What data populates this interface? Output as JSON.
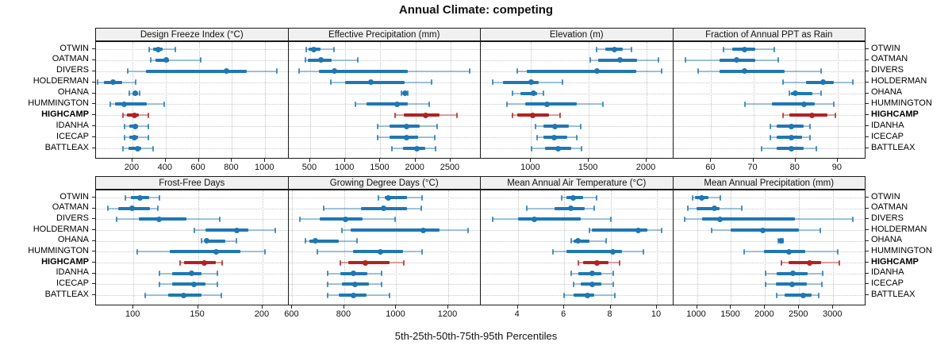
{
  "title": "Annual Climate: competing",
  "footer": "5th-25th-50th-75th-95th Percentiles",
  "colors": {
    "series": "#1f77b4",
    "series_light": "rgba(31,119,180,0.40)",
    "series_cap": "rgba(31,119,180,0.80)",
    "highlight": "#b22222",
    "highlight_light": "rgba(178,34,34,0.40)",
    "highlight_cap": "rgba(178,34,34,0.80)",
    "strip_bg": "#f0f0f0",
    "grid": "#c9c9c9",
    "border": "#1a1a1a"
  },
  "sites": [
    "OTWIN",
    "OATMAN",
    "DIVERS",
    "HOLDERMAN",
    "OHANA",
    "HUMMINGTON",
    "HIGHCAMP",
    "IDANHA",
    "ICECAP",
    "BATTLEAX"
  ],
  "highlight_site": "HIGHCAMP",
  "chart_data": {
    "type": "dotplot-percentiles",
    "percentiles": [
      "5th",
      "25th",
      "50th",
      "75th",
      "95th"
    ],
    "panels": [
      {
        "label": "Design Freeze Index (°C)",
        "xlim": [
          -20,
          1140
        ],
        "ticks": [
          200,
          400,
          600,
          800,
          1000
        ],
        "series": [
          [
            300,
            325,
            355,
            380,
            460
          ],
          [
            310,
            340,
            405,
            420,
            610
          ],
          [
            170,
            280,
            765,
            890,
            1070
          ],
          [
            -10,
            30,
            85,
            140,
            220
          ],
          [
            180,
            200,
            215,
            235,
            245
          ],
          [
            65,
            95,
            150,
            285,
            390
          ],
          [
            145,
            165,
            210,
            240,
            295
          ],
          [
            150,
            180,
            215,
            235,
            295
          ],
          [
            150,
            180,
            210,
            235,
            295
          ],
          [
            145,
            175,
            230,
            255,
            325
          ]
        ]
      },
      {
        "label": "Effective Precipitation (mm)",
        "xlim": [
          190,
          2930
        ],
        "ticks": [
          500,
          1000,
          1500,
          2000,
          2500
        ],
        "series": [
          [
            440,
            475,
            555,
            645,
            835
          ],
          [
            430,
            465,
            655,
            805,
            1180
          ],
          [
            340,
            630,
            845,
            1890,
            2770
          ],
          [
            800,
            1000,
            1360,
            1840,
            2230
          ],
          [
            1805,
            1825,
            1850,
            1870,
            1890
          ],
          [
            1145,
            1300,
            1735,
            1890,
            2190
          ],
          [
            1710,
            1830,
            2150,
            2345,
            2590
          ],
          [
            1460,
            1635,
            1875,
            2060,
            2310
          ],
          [
            1460,
            1625,
            1870,
            2040,
            2270
          ],
          [
            1660,
            1825,
            2025,
            2135,
            2285
          ]
        ]
      },
      {
        "label": "Elevation (m)",
        "xlim": [
          565,
          2230
        ],
        "ticks": [
          1000,
          1500,
          2000
        ],
        "series": [
          [
            1570,
            1645,
            1720,
            1795,
            1870
          ],
          [
            1515,
            1580,
            1770,
            1920,
            2100
          ],
          [
            880,
            965,
            1570,
            1910,
            2130
          ],
          [
            665,
            760,
            1000,
            1065,
            1270
          ],
          [
            840,
            905,
            1020,
            1055,
            1110
          ],
          [
            790,
            950,
            1135,
            1395,
            1620
          ],
          [
            840,
            880,
            1015,
            1155,
            1250
          ],
          [
            1040,
            1110,
            1205,
            1325,
            1430
          ],
          [
            1055,
            1110,
            1200,
            1315,
            1395
          ],
          [
            1005,
            1120,
            1235,
            1350,
            1435
          ]
        ]
      },
      {
        "label": "Fraction of Annual PPT as Rain",
        "xlim": [
          51,
          96.6
        ],
        "ticks": [
          60,
          70,
          80,
          90
        ],
        "series": [
          [
            63,
            65,
            68,
            70.5,
            75
          ],
          [
            54,
            62,
            66,
            70.5,
            76
          ],
          [
            57,
            62,
            68,
            77.5,
            86
          ],
          [
            77,
            82.5,
            86.5,
            89,
            93.5
          ],
          [
            78.5,
            79,
            80,
            84,
            86
          ],
          [
            68,
            74.5,
            82,
            84.5,
            89
          ],
          [
            77,
            78.5,
            84,
            87.5,
            89.5
          ],
          [
            74,
            75.5,
            79,
            82,
            83.5
          ],
          [
            74,
            75.5,
            79,
            81.5,
            83.5
          ],
          [
            72,
            75.5,
            79,
            82,
            85
          ]
        ]
      },
      {
        "label": "Frost-Free Days",
        "xlim": [
          71,
          220
        ],
        "ticks": [
          100,
          150,
          200
        ],
        "series": [
          [
            94,
            98,
            105,
            112,
            120
          ],
          [
            80,
            88,
            99,
            113,
            119
          ],
          [
            87,
            104,
            120,
            141,
            167
          ],
          [
            147,
            156,
            180,
            189,
            210
          ],
          [
            153,
            155,
            157,
            171,
            180
          ],
          [
            103,
            128,
            164,
            183,
            202
          ],
          [
            136,
            139,
            155,
            164,
            169
          ],
          [
            120,
            130,
            145,
            153,
            165
          ],
          [
            120,
            130,
            147,
            156,
            165
          ],
          [
            109,
            127,
            139,
            153,
            168
          ]
        ]
      },
      {
        "label": "Growing Degree Days (°C)",
        "xlim": [
          585,
          1325
        ],
        "ticks": [
          600,
          800,
          1000,
          1200
        ],
        "series": [
          [
            930,
            955,
            970,
            1040,
            1100
          ],
          [
            720,
            865,
            950,
            1040,
            1095
          ],
          [
            630,
            705,
            805,
            870,
            995
          ],
          [
            790,
            825,
            1105,
            1165,
            1275
          ],
          [
            650,
            665,
            690,
            780,
            850
          ],
          [
            695,
            835,
            940,
            1025,
            1100
          ],
          [
            785,
            815,
            880,
            975,
            1030
          ],
          [
            735,
            785,
            835,
            890,
            945
          ],
          [
            735,
            790,
            840,
            895,
            945
          ],
          [
            735,
            780,
            835,
            885,
            975
          ]
        ]
      },
      {
        "label": "Mean Annual Air Temperature (°C)",
        "xlim": [
          2.4,
          10.7
        ],
        "ticks": [
          4,
          6,
          8,
          10
        ],
        "series": [
          [
            5.9,
            6.1,
            6.4,
            6.8,
            7.4
          ],
          [
            4.4,
            5.6,
            6.3,
            6.9,
            7.3
          ],
          [
            2.9,
            4.0,
            4.7,
            6.7,
            8.0
          ],
          [
            7.1,
            7.2,
            9.2,
            9.6,
            10.2
          ],
          [
            6.3,
            6.4,
            6.6,
            7.1,
            7.8
          ],
          [
            5.5,
            6.1,
            8.1,
            8.5,
            9.4
          ],
          [
            6.6,
            6.8,
            7.4,
            7.9,
            8.4
          ],
          [
            6.3,
            6.6,
            7.2,
            7.6,
            8.1
          ],
          [
            6.4,
            6.7,
            7.2,
            7.6,
            8.1
          ],
          [
            6.0,
            6.4,
            7.0,
            7.3,
            8.2
          ]
        ]
      },
      {
        "label": "Mean Annual Precipitation (mm)",
        "xlim": [
          650,
          3475
        ],
        "ticks": [
          1000,
          1500,
          2000,
          2500,
          3000
        ],
        "series": [
          [
            935,
            965,
            1070,
            1165,
            1340
          ],
          [
            865,
            995,
            1250,
            1330,
            1655
          ],
          [
            820,
            1080,
            1340,
            2435,
            3290
          ],
          [
            1210,
            1500,
            1965,
            2500,
            2810
          ],
          [
            2195,
            2215,
            2240,
            2255,
            2265
          ],
          [
            1695,
            1980,
            2350,
            2595,
            3070
          ],
          [
            2240,
            2350,
            2655,
            2820,
            3090
          ],
          [
            2005,
            2165,
            2405,
            2620,
            2850
          ],
          [
            2005,
            2155,
            2395,
            2610,
            2840
          ],
          [
            2175,
            2290,
            2555,
            2685,
            2790
          ]
        ]
      }
    ]
  }
}
